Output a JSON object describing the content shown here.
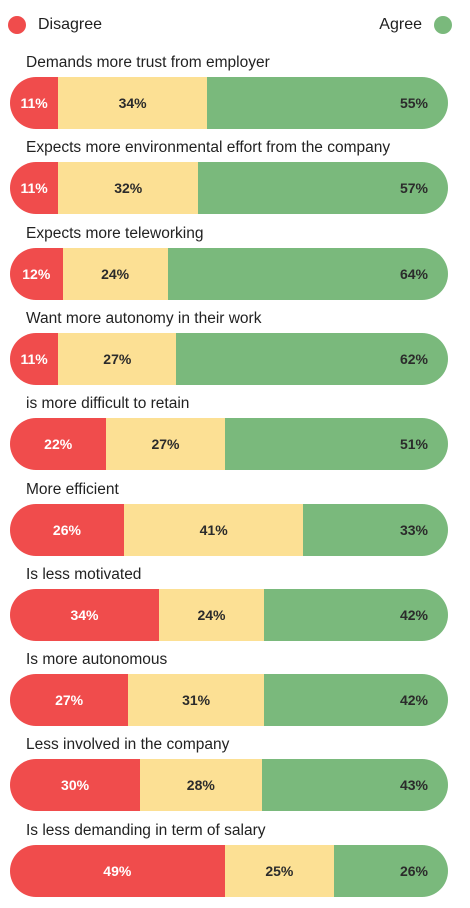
{
  "legend": {
    "disagree_label": "Disagree",
    "agree_label": "Agree"
  },
  "colors": {
    "disagree": "#f04c4c",
    "neutral": "#fce094",
    "agree": "#7ab97c"
  },
  "chart_data": {
    "type": "bar",
    "orientation": "horizontal",
    "stacked": true,
    "percent": true,
    "categories": [
      "Demands more trust from employer",
      "Expects more  environmental effort from the company",
      "Expects more teleworking",
      "Want more autonomy in their work",
      "is more difficult to retain",
      "More efficient",
      "Is less motivated",
      "Is more autonomous",
      "Less involved in the company",
      "Is less demanding in term of salary"
    ],
    "series": [
      {
        "name": "Disagree",
        "values": [
          11,
          11,
          12,
          11,
          22,
          26,
          34,
          27,
          30,
          49
        ]
      },
      {
        "values": [
          34,
          32,
          24,
          27,
          27,
          41,
          24,
          31,
          28,
          25
        ]
      },
      {
        "name": "Agree",
        "values": [
          55,
          57,
          64,
          62,
          51,
          33,
          42,
          42,
          43,
          26
        ]
      }
    ],
    "data_labels": [
      [
        "11%",
        "34%",
        "55%"
      ],
      [
        "11%",
        "32%",
        "57%"
      ],
      [
        "12%",
        "24%",
        "64%"
      ],
      [
        "11%",
        "27%",
        "62%"
      ],
      [
        "22%",
        "27%",
        "51%"
      ],
      [
        "26%",
        "41%",
        "33%"
      ],
      [
        "34%",
        "24%",
        "42%"
      ],
      [
        "27%",
        "31%",
        "42%"
      ],
      [
        "30%",
        "28%",
        "43%"
      ],
      [
        "49%",
        "25%",
        "26%"
      ]
    ],
    "legend_position": "top",
    "grid": false
  }
}
